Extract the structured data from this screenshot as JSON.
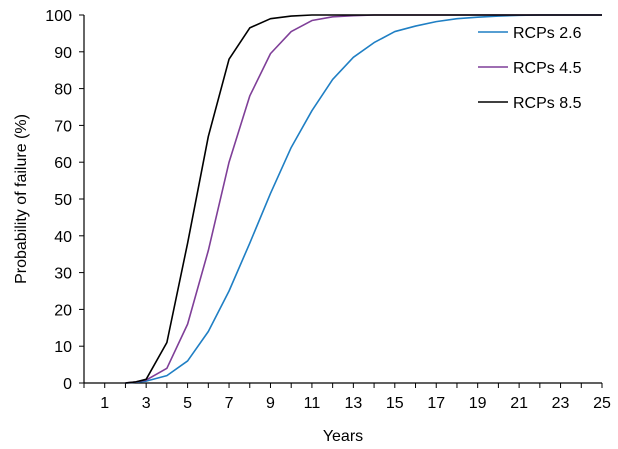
{
  "chart_data": {
    "type": "line",
    "xlabel": "Years",
    "ylabel": "Probability of failure (%)",
    "xlim": [
      0,
      25
    ],
    "ylim": [
      0,
      100
    ],
    "x_ticks": [
      1,
      3,
      5,
      7,
      9,
      11,
      13,
      15,
      17,
      19,
      21,
      23,
      25
    ],
    "y_ticks": [
      0,
      10,
      20,
      30,
      40,
      50,
      60,
      70,
      80,
      90,
      100
    ],
    "grid": false,
    "legend_position": "top-right",
    "series": [
      {
        "name": "RCPs 2.6",
        "color": "#1f7fc4",
        "x": [
          2,
          2.5,
          3,
          4,
          5,
          6,
          7,
          8,
          9,
          10,
          11,
          12,
          13,
          14,
          15,
          16,
          17,
          18,
          19,
          20,
          21,
          22,
          23,
          24,
          25
        ],
        "y": [
          0,
          0.2,
          0.5,
          2,
          6,
          14,
          25,
          38,
          51.5,
          64,
          74,
          82.5,
          88.5,
          92.5,
          95.5,
          97,
          98.2,
          99,
          99.4,
          99.7,
          99.9,
          100,
          100,
          100,
          100
        ]
      },
      {
        "name": "RCPs 4.5",
        "color": "#7f3f98",
        "x": [
          2,
          2.5,
          3,
          4,
          5,
          6,
          7,
          8,
          9,
          10,
          11,
          12,
          13,
          14,
          15,
          16,
          17,
          18,
          19,
          20,
          21,
          22,
          23,
          24,
          25
        ],
        "y": [
          0,
          0.3,
          0.8,
          4,
          16,
          36,
          60,
          78,
          89.5,
          95.5,
          98.5,
          99.5,
          99.8,
          100,
          100,
          100,
          100,
          100,
          100,
          100,
          100,
          100,
          100,
          100,
          100
        ]
      },
      {
        "name": "RCPs 8.5",
        "color": "#000000",
        "x": [
          2,
          2.5,
          3,
          4,
          5,
          6,
          7,
          8,
          9,
          10,
          11,
          12,
          13,
          14,
          15,
          16,
          17,
          18,
          19,
          20,
          21,
          22,
          23,
          24,
          25
        ],
        "y": [
          0,
          0.3,
          1,
          11,
          38,
          67,
          88,
          96.5,
          99,
          99.7,
          100,
          100,
          100,
          100,
          100,
          100,
          100,
          100,
          100,
          100,
          100,
          100,
          100,
          100,
          100
        ]
      }
    ]
  }
}
